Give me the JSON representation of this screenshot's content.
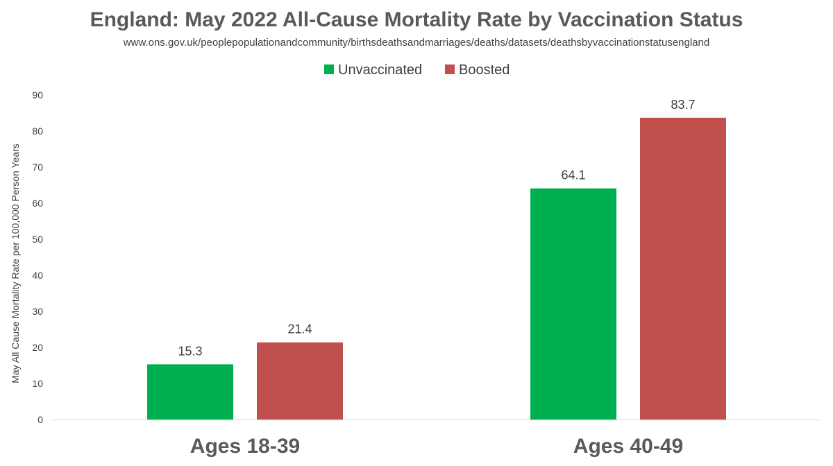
{
  "chart_data": {
    "type": "bar",
    "title": "England: May 2022 All-Cause Mortality Rate by Vaccination Status",
    "subtitle": "www.ons.gov.uk/peoplepopulationandcommunity/birthsdeathsandmarriages/deaths/datasets/deathsbyvaccinationstatusengland",
    "ylabel": "May All Cause Mortality Rate per 100,000 Person Years",
    "xlabel": "",
    "categories": [
      "Ages 18-39",
      "Ages 40-49"
    ],
    "series": [
      {
        "name": "Unvaccinated",
        "color": "#00b050",
        "values": [
          15.3,
          64.1
        ]
      },
      {
        "name": "Boosted",
        "color": "#c0504d",
        "values": [
          21.4,
          83.7
        ]
      }
    ],
    "value_labels": [
      [
        "15.3",
        "64.1"
      ],
      [
        "21.4",
        "83.7"
      ]
    ],
    "yticks": [
      "0",
      "10",
      "20",
      "30",
      "40",
      "50",
      "60",
      "70",
      "80",
      "90"
    ],
    "ylim": [
      0,
      90
    ],
    "grid": false,
    "legend_position": "top-center"
  }
}
